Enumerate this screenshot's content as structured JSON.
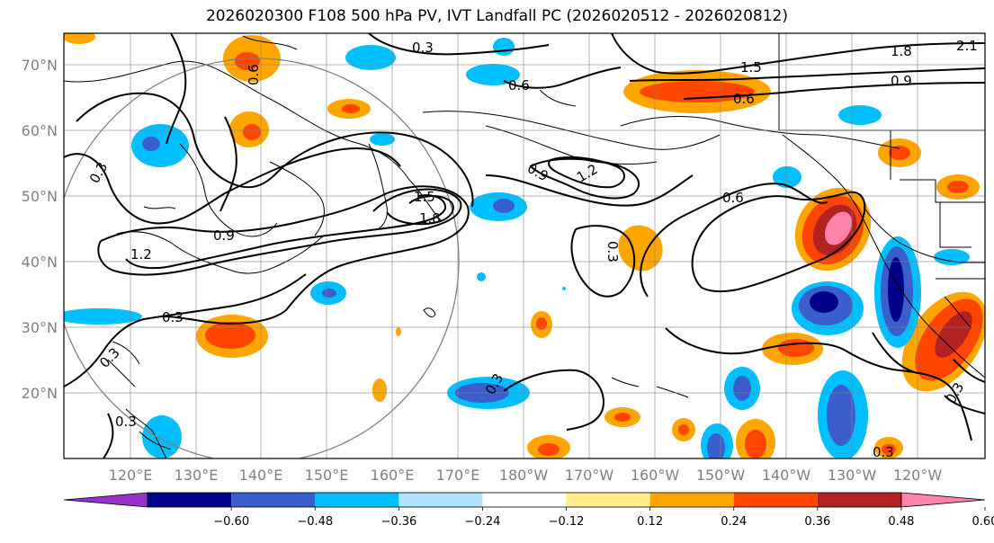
{
  "title": "2026020300 F108 500 hPa PV, IVT Landfall PC (2026020512 - 2026020812)",
  "latitude_labels": [
    "70°N",
    "60°N",
    "50°N",
    "40°N",
    "30°N",
    "20°N"
  ],
  "longitude_labels": [
    "120°E",
    "130°E",
    "140°E",
    "150°E",
    "160°E",
    "170°E",
    "180°W",
    "170°W",
    "160°W",
    "150°W",
    "140°W",
    "130°W",
    "120°W"
  ],
  "colorbar": {
    "colors": [
      "#9932cc",
      "#00008b",
      "#3a5fcd",
      "#00bfff",
      "#b0e2ff",
      "#ffffff",
      "#ffec8b",
      "#ffa500",
      "#ff4500",
      "#b22222",
      "#ff82ab"
    ],
    "tick_labels": [
      "−0.60",
      "−0.48",
      "−0.36",
      "−0.24",
      "−0.12",
      "0.12",
      "0.24",
      "0.36",
      "0.48",
      "0.60"
    ]
  },
  "contour_labels": [
    "0.3",
    "0.6",
    "1.5",
    "1.8",
    "2.1",
    "0.9",
    "0.6",
    "1.2",
    "0.9",
    "0.6",
    "1.5",
    "1.8",
    "0.3",
    "0.3",
    "0.9",
    "1.2",
    "0.3",
    "0.3",
    "0.3",
    "0.3",
    "0.6",
    "0.3",
    "0.3"
  ]
}
